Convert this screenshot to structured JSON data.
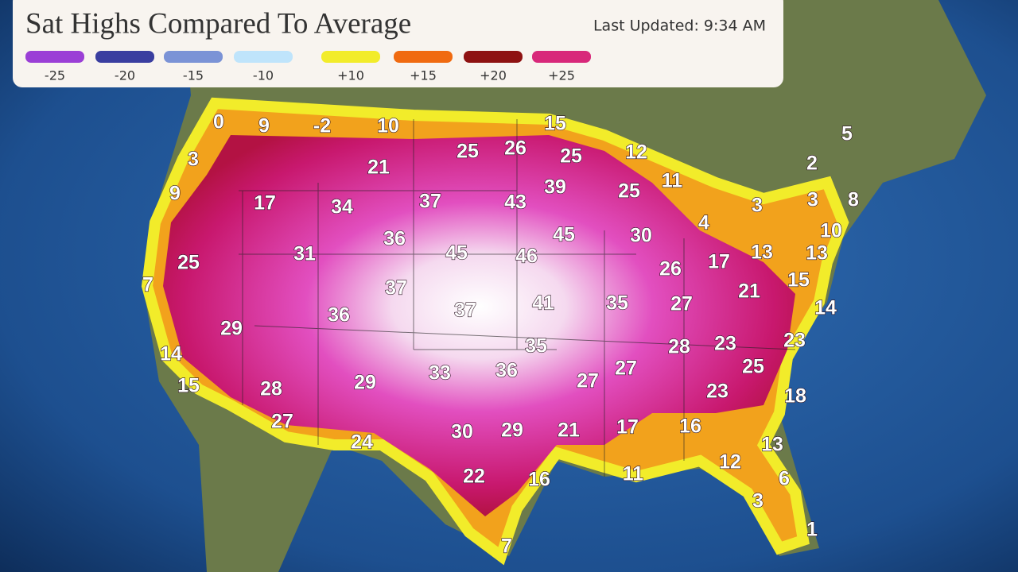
{
  "header": {
    "title": "Sat Highs Compared To Average",
    "updated": "Last Updated: 9:34 AM"
  },
  "legend": [
    {
      "label": "-25",
      "color": "#9b3fd6"
    },
    {
      "label": "-20",
      "color": "#3a3ea0"
    },
    {
      "label": "-15",
      "color": "#7b93d6"
    },
    {
      "label": "-10",
      "color": "#bfe4fb"
    },
    {
      "label": "+10",
      "color": "#f2ec2a"
    },
    {
      "label": "+15",
      "color": "#f06a10"
    },
    {
      "label": "+20",
      "color": "#8e1212"
    },
    {
      "label": "+25",
      "color": "#d8287a"
    }
  ],
  "map_labels": [
    0,
    9,
    -2,
    10,
    15,
    3,
    25,
    26,
    25,
    12,
    21,
    2,
    5,
    9,
    17,
    34,
    37,
    43,
    39,
    25,
    11,
    3,
    3,
    8,
    4,
    10,
    36,
    45,
    46,
    45,
    30,
    17,
    13,
    13,
    25,
    31,
    26,
    7,
    37,
    41,
    35,
    27,
    21,
    15,
    14,
    36,
    37,
    29,
    35,
    28,
    23,
    23,
    14,
    33,
    36,
    27,
    25,
    29,
    27,
    15,
    28,
    23,
    18,
    27,
    30,
    29,
    21,
    17,
    16,
    13,
    24,
    12,
    22,
    16,
    11,
    6,
    3,
    1,
    7
  ]
}
